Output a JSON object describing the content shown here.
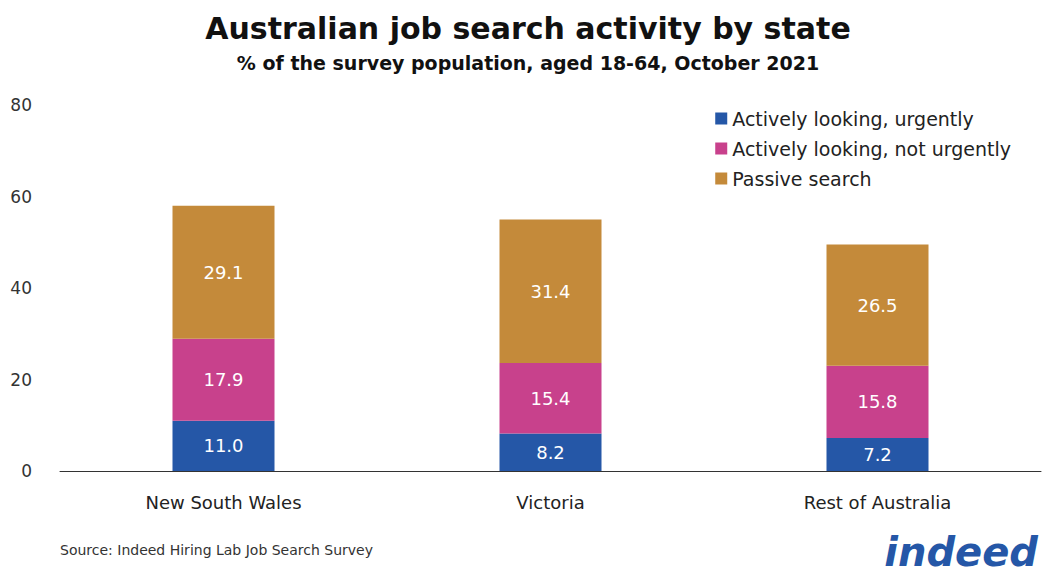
{
  "chart_data": {
    "type": "bar",
    "title": "Australian job search activity by state",
    "subtitle": "% of the survey population, aged 18-64, October 2021",
    "source": "Source: Indeed Hiring Lab Job Search Survey",
    "brand": "indeed",
    "categories": [
      "New South Wales",
      "Victoria",
      "Rest of Australia"
    ],
    "series": [
      {
        "name": "Actively looking, urgently",
        "color": "#2557a7",
        "values": [
          11.0,
          8.2,
          7.2
        ],
        "value_labels": [
          "11.0",
          "8.2",
          "7.2"
        ]
      },
      {
        "name": "Actively looking, not urgently",
        "color": "#c8418c",
        "values": [
          17.9,
          15.4,
          15.8
        ],
        "value_labels": [
          "17.9",
          "15.4",
          "15.8"
        ]
      },
      {
        "name": "Passive search",
        "color": "#c48a3a",
        "values": [
          29.1,
          31.4,
          26.5
        ],
        "value_labels": [
          "29.1",
          "31.4",
          "26.5"
        ]
      }
    ],
    "ylim": [
      0,
      80
    ],
    "yticks": [
      0,
      20,
      40,
      60,
      80
    ],
    "stacked": true,
    "data_labels": true,
    "grid": false,
    "legend": "top-right"
  }
}
